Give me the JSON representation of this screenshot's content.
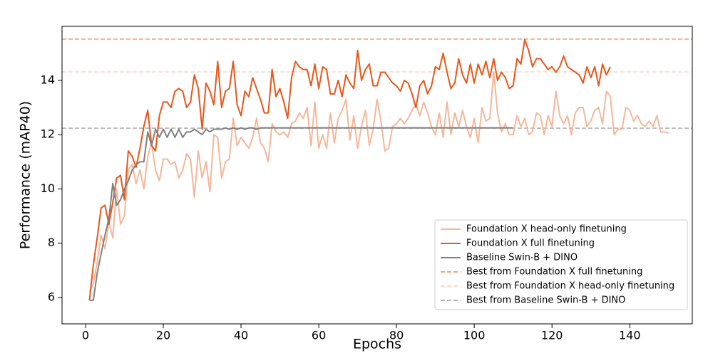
{
  "chart_data": {
    "type": "line",
    "xlabel": "Epochs",
    "ylabel": "Performance (mAP40)",
    "xlim": [
      -6.05,
      156.1
    ],
    "ylim": [
      5.03,
      15.99
    ],
    "xticks": [
      0,
      20,
      40,
      60,
      80,
      100,
      120,
      140
    ],
    "yticks": [
      6,
      8,
      10,
      12,
      14
    ],
    "legend": "lower right",
    "x": [
      1,
      2,
      3,
      4,
      5,
      6,
      7,
      8,
      9,
      10,
      11,
      12,
      13,
      14,
      15,
      16,
      17,
      18,
      19,
      20,
      21,
      22,
      23,
      24,
      25,
      26,
      27,
      28,
      29,
      30,
      31,
      32,
      33,
      34,
      35,
      36,
      37,
      38,
      39,
      40,
      41,
      42,
      43,
      44,
      45,
      46,
      47,
      48,
      49,
      50,
      51,
      52,
      53,
      54,
      55,
      56,
      57,
      58,
      59,
      60,
      61,
      62,
      63,
      64,
      65,
      66,
      67,
      68,
      69,
      70,
      71,
      72,
      73,
      74,
      75,
      76,
      77,
      78,
      79,
      80,
      81,
      82,
      83,
      84,
      85,
      86,
      87,
      88,
      89,
      90,
      91,
      92,
      93,
      94,
      95,
      96,
      97,
      98,
      99,
      100,
      101,
      102,
      103,
      104,
      105,
      106,
      107,
      108,
      109,
      110,
      111,
      112,
      113,
      114,
      115,
      116,
      117,
      118,
      119,
      120,
      121,
      122,
      123,
      124,
      125,
      126,
      127,
      128,
      129,
      130,
      131,
      132,
      133,
      134,
      135,
      136,
      137,
      138,
      139,
      140,
      141,
      142,
      143,
      144,
      145,
      146,
      147,
      148,
      149,
      150
    ],
    "series": [
      {
        "name": "Foundation X head-only finetuning",
        "color": "#f6b699",
        "values": [
          6.2,
          6.5,
          7.3,
          8.3,
          7.8,
          8.8,
          8.2,
          10.0,
          8.7,
          9.0,
          10.7,
          10.9,
          10.2,
          10.7,
          10.0,
          11.2,
          11.7,
          10.7,
          10.3,
          11.1,
          11.1,
          10.9,
          11.0,
          10.4,
          10.7,
          11.3,
          11.1,
          9.7,
          11.4,
          10.4,
          11.0,
          9.9,
          12.0,
          11.9,
          10.4,
          11.0,
          11.1,
          12.6,
          11.6,
          11.9,
          11.7,
          11.5,
          11.9,
          12.6,
          11.7,
          11.5,
          11.0,
          12.4,
          12.1,
          12.0,
          12.1,
          11.9,
          12.4,
          12.5,
          12.8,
          12.6,
          13.0,
          11.6,
          13.2,
          11.5,
          12.0,
          11.5,
          12.8,
          11.7,
          12.6,
          12.9,
          13.3,
          11.8,
          12.7,
          11.5,
          12.3,
          12.9,
          11.6,
          12.2,
          13.3,
          12.5,
          11.4,
          11.5,
          12.3,
          12.4,
          12.6,
          12.4,
          12.6,
          12.9,
          13.1,
          12.7,
          13.2,
          12.8,
          12.3,
          12.0,
          12.8,
          11.9,
          13.2,
          12.0,
          12.8,
          12.3,
          12.9,
          12.3,
          11.9,
          12.6,
          11.7,
          13.0,
          12.5,
          12.6,
          14.3,
          12.8,
          12.1,
          12.4,
          12.0,
          12.0,
          12.7,
          12.3,
          12.6,
          12.0,
          12.1,
          12.8,
          12.7,
          12.0,
          12.7,
          12.3,
          13.6,
          12.7,
          12.4,
          12.7,
          12.0,
          12.8,
          13.0,
          13.0,
          12.3,
          12.5,
          12.9,
          13.0,
          12.4,
          13.6,
          13.4,
          12.0,
          12.2,
          12.2,
          13.0,
          12.9,
          12.5,
          12.7,
          12.4,
          12.3,
          12.5,
          12.3,
          12.7,
          12.1,
          12.1,
          12.05
        ]
      },
      {
        "name": "Foundation X full finetuning",
        "color": "#e8561a",
        "values": [
          5.9,
          7.2,
          8.2,
          9.3,
          9.4,
          8.7,
          9.5,
          10.4,
          10.5,
          9.6,
          11.4,
          11.2,
          10.8,
          11.5,
          12.3,
          12.9,
          11.6,
          11.4,
          12.7,
          13.2,
          13.2,
          13.0,
          13.6,
          13.7,
          13.6,
          13.0,
          13.2,
          14.2,
          13.7,
          12.2,
          13.9,
          13.6,
          13.1,
          14.7,
          13.0,
          13.6,
          13.7,
          14.7,
          13.1,
          12.7,
          13.6,
          13.4,
          14.1,
          13.7,
          13.3,
          12.8,
          12.8,
          14.4,
          13.4,
          13.7,
          13.2,
          12.6,
          14.1,
          14.7,
          14.5,
          14.4,
          14.4,
          13.8,
          14.6,
          13.7,
          14.5,
          14.4,
          13.5,
          13.5,
          14.0,
          13.4,
          14.2,
          13.9,
          13.7,
          15.1,
          14.0,
          14.4,
          14.6,
          13.8,
          13.8,
          14.3,
          14.3,
          14.1,
          13.9,
          13.8,
          13.6,
          14.0,
          13.9,
          13.5,
          13.0,
          13.8,
          14.0,
          13.5,
          13.8,
          14.5,
          14.4,
          15.0,
          14.3,
          13.7,
          13.9,
          14.8,
          14.2,
          13.9,
          14.6,
          13.9,
          14.6,
          14.2,
          14.7,
          14.1,
          14.8,
          14.0,
          14.3,
          14.1,
          13.7,
          13.8,
          14.8,
          14.6,
          15.5,
          15.1,
          14.5,
          14.8,
          14.8,
          14.6,
          14.4,
          14.5,
          14.3,
          14.5,
          14.9,
          14.5,
          14.4,
          14.3,
          14.2,
          13.9,
          14.5,
          14.1,
          14.5,
          13.8,
          14.6,
          14.2,
          14.5,
          null,
          null,
          null,
          null,
          null,
          null,
          null,
          null,
          null,
          null,
          null,
          null,
          null,
          null,
          null
        ]
      },
      {
        "name": "Baseline Swin-B + DINO",
        "color": "#808080",
        "values": [
          5.9,
          5.9,
          6.9,
          7.6,
          8.3,
          8.9,
          10.2,
          9.4,
          9.6,
          10.0,
          10.3,
          10.7,
          10.9,
          11.0,
          11.0,
          12.1,
          11.6,
          12.2,
          11.9,
          12.2,
          11.9,
          12.2,
          11.9,
          12.2,
          11.9,
          12.1,
          12.1,
          12.2,
          12.1,
          12.0,
          12.2,
          12.1,
          12.2,
          12.2,
          12.2,
          12.25,
          12.2,
          12.25,
          12.2,
          12.25,
          12.2,
          12.25,
          12.25,
          12.2,
          12.25,
          12.25,
          12.25,
          12.25,
          12.25,
          12.25,
          12.25,
          12.25,
          12.25,
          12.25,
          12.25,
          12.25,
          12.25,
          12.25,
          12.25,
          12.25,
          12.25,
          12.25,
          12.25,
          12.25,
          12.25,
          12.25,
          12.25,
          12.25,
          12.25,
          12.25,
          12.25,
          12.25,
          12.25,
          12.25,
          12.25,
          12.25,
          12.25,
          12.25,
          12.25,
          12.25,
          12.25,
          12.25,
          12.25,
          12.25,
          12.25,
          12.25,
          12.25,
          12.25,
          12.25,
          12.25,
          12.25,
          12.25,
          12.25,
          12.25,
          12.25,
          12.25,
          12.25,
          12.25,
          12.25,
          12.25,
          12.25,
          12.25,
          12.25,
          12.25,
          12.25,
          12.25,
          12.25,
          12.25,
          12.25,
          12.25,
          null,
          null,
          null,
          null,
          null,
          null,
          null,
          null,
          null,
          null,
          null,
          null,
          null,
          null,
          null,
          null,
          null,
          null,
          null,
          null,
          null,
          null,
          null,
          null,
          null,
          null,
          null,
          null,
          null,
          null,
          null,
          null,
          null,
          null,
          null,
          null,
          null,
          null,
          null,
          null
        ]
      }
    ],
    "reference_lines": [
      {
        "name": "Best from Foundation X full finetuning",
        "value": 15.52,
        "color": "#f4a27c"
      },
      {
        "name": "Best from Foundation X head-only finetuning",
        "value": 14.31,
        "color": "#fbd9c8"
      },
      {
        "name": "Best from Baseline Swin-B + DINO",
        "value": 12.24,
        "color": "#b3b3b3"
      }
    ]
  }
}
